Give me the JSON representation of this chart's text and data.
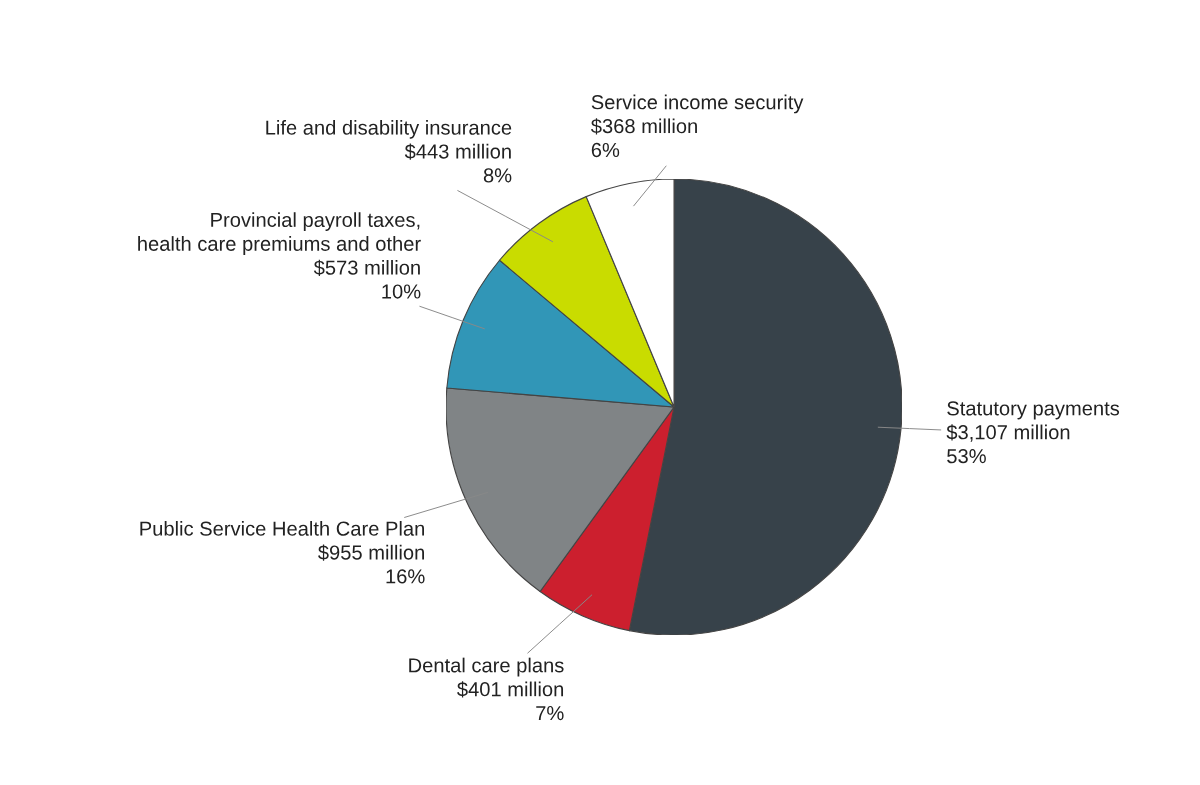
{
  "chart_data": {
    "type": "pie",
    "categories": [
      "Statutory payments",
      "Dental care plans",
      "Public Service Health Care Plan",
      "Provincial payroll taxes,\nhealth care premiums and other",
      "Life and disability insurance",
      "Service income security"
    ],
    "values": [
      3107,
      401,
      955,
      573,
      443,
      368
    ],
    "value_labels": [
      "$3,107 million",
      "$401 million",
      "$955 million",
      "$573 million",
      "$443 million",
      "$368 million"
    ],
    "annotations": [
      {
        "text": "53%",
        "x": "Statutory payments"
      },
      {
        "text": "7%",
        "x": "Dental care plans"
      },
      {
        "text": "16%",
        "x": "Public Service Health Care Plan"
      },
      {
        "text": "10%",
        "x": "Provincial payroll taxes,\nhealth care premiums and other"
      },
      {
        "text": "8%",
        "x": "Life and disability insurance"
      },
      {
        "text": "6%",
        "x": "Service income security"
      }
    ],
    "colors": [
      "#37424a",
      "#cc1f2e",
      "#808486",
      "#3196b7",
      "#c9dc00",
      "#ffffff"
    ]
  }
}
